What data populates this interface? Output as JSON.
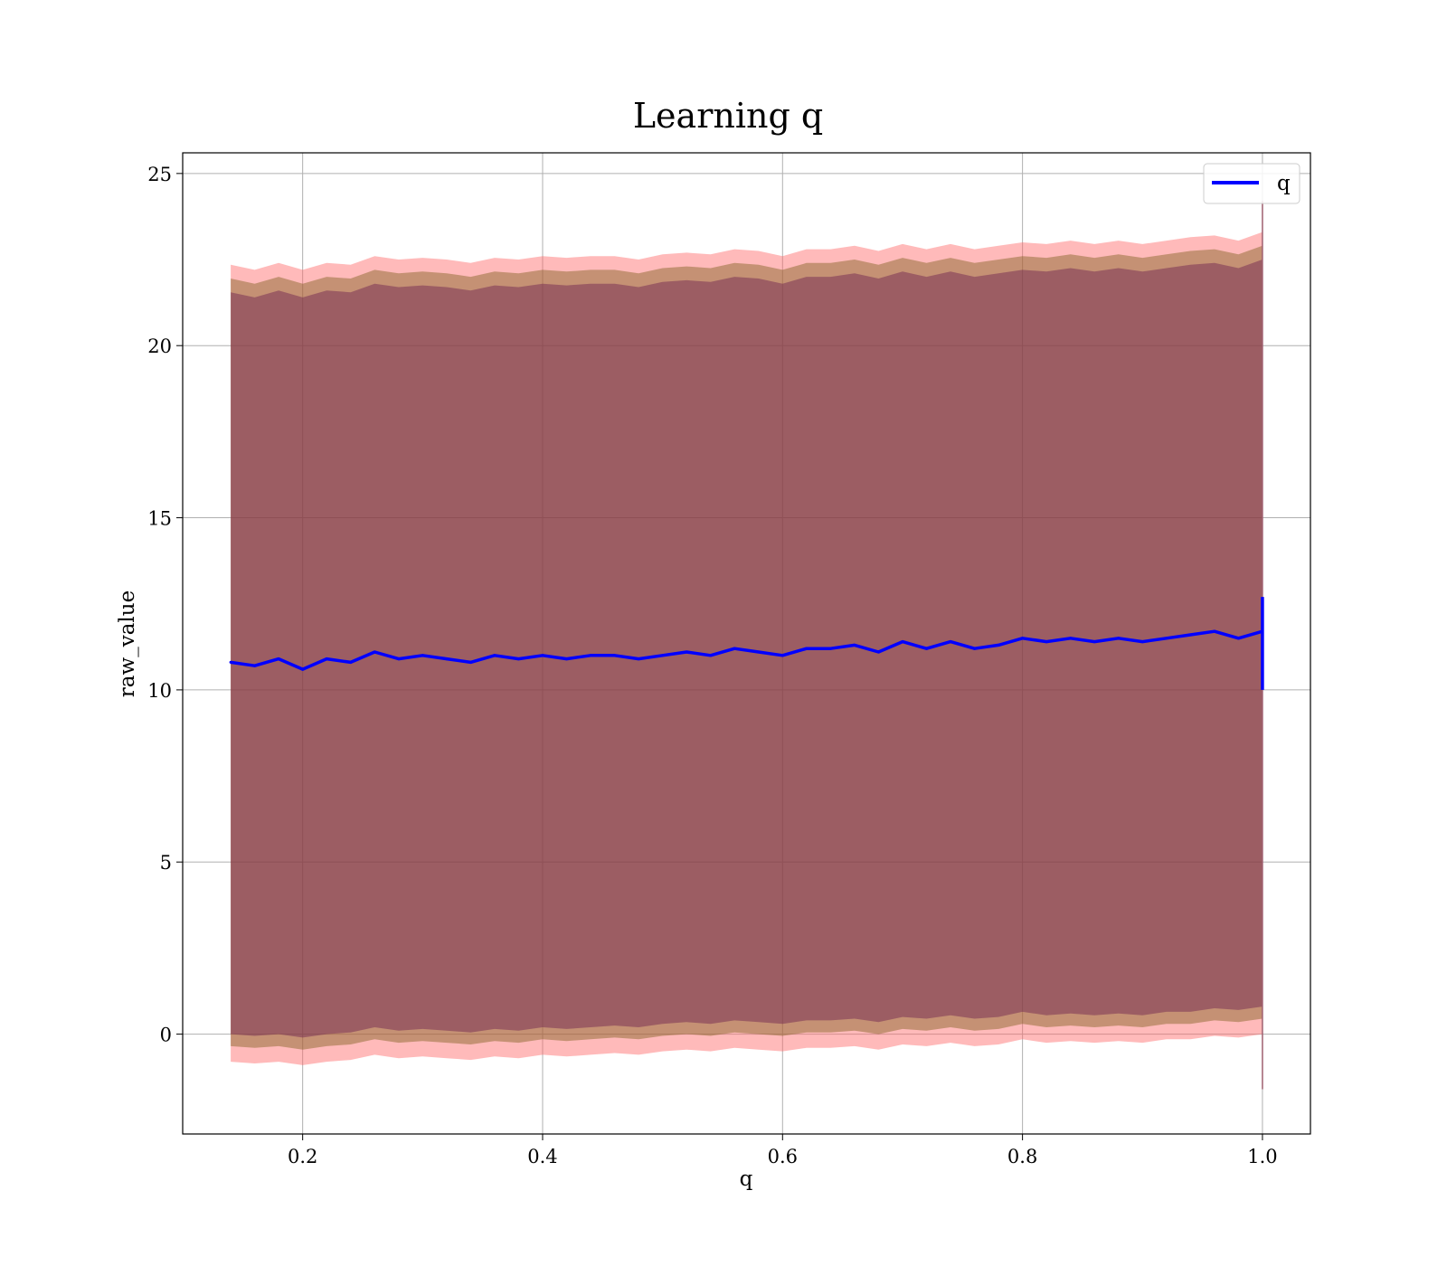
{
  "chart_data": {
    "type": "line",
    "title": "Learning q",
    "xlabel": "q",
    "ylabel": "raw_value",
    "xlim": [
      0.1,
      1.04
    ],
    "ylim": [
      -2.9,
      25.6
    ],
    "xticks": [
      0.2,
      0.4,
      0.6,
      0.8,
      1.0
    ],
    "xtick_labels": [
      "0.2",
      "0.4",
      "0.6",
      "0.8",
      "1.0"
    ],
    "yticks": [
      0,
      5,
      10,
      15,
      20,
      25
    ],
    "ytick_labels": [
      "0",
      "5",
      "10",
      "15",
      "20",
      "25"
    ],
    "grid": true,
    "legend": {
      "location": "upper-right",
      "entries": [
        "q"
      ]
    },
    "series": [
      {
        "name": "q",
        "color": "#0000ff",
        "x": [
          0.14,
          0.16,
          0.18,
          0.2,
          0.22,
          0.24,
          0.26,
          0.28,
          0.3,
          0.32,
          0.34,
          0.36,
          0.38,
          0.4,
          0.42,
          0.44,
          0.46,
          0.48,
          0.5,
          0.52,
          0.54,
          0.56,
          0.58,
          0.6,
          0.62,
          0.64,
          0.66,
          0.68,
          0.7,
          0.72,
          0.74,
          0.76,
          0.78,
          0.8,
          0.82,
          0.84,
          0.86,
          0.88,
          0.9,
          0.92,
          0.94,
          0.96,
          0.98,
          1.0
        ],
        "y": [
          10.8,
          10.7,
          10.9,
          10.6,
          10.9,
          10.8,
          11.1,
          10.9,
          11.0,
          10.9,
          10.8,
          11.0,
          10.9,
          11.0,
          10.9,
          11.0,
          11.0,
          10.9,
          11.0,
          11.1,
          11.0,
          11.2,
          11.1,
          11.0,
          11.2,
          11.2,
          11.3,
          11.1,
          11.4,
          11.2,
          11.4,
          11.2,
          11.3,
          11.5,
          11.4,
          11.5,
          11.4,
          11.5,
          11.4,
          11.5,
          11.6,
          11.7,
          11.5,
          11.7
        ]
      }
    ],
    "bands": [
      {
        "color": "#ff6666",
        "lower": [
          -0.8,
          -0.85,
          -0.8,
          -0.9,
          -0.8,
          -0.75,
          -0.6,
          -0.7,
          -0.65,
          -0.7,
          -0.75,
          -0.65,
          -0.7,
          -0.6,
          -0.65,
          -0.6,
          -0.55,
          -0.6,
          -0.5,
          -0.45,
          -0.5,
          -0.4,
          -0.45,
          -0.5,
          -0.4,
          -0.4,
          -0.35,
          -0.45,
          -0.3,
          -0.35,
          -0.25,
          -0.35,
          -0.3,
          -0.15,
          -0.25,
          -0.2,
          -0.25,
          -0.2,
          -0.25,
          -0.15,
          -0.15,
          -0.05,
          -0.1,
          0.0
        ],
        "upper": [
          22.35,
          22.2,
          22.4,
          22.2,
          22.4,
          22.35,
          22.6,
          22.5,
          22.55,
          22.5,
          22.4,
          22.55,
          22.5,
          22.6,
          22.55,
          22.6,
          22.6,
          22.5,
          22.65,
          22.7,
          22.65,
          22.8,
          22.75,
          22.6,
          22.8,
          22.8,
          22.9,
          22.75,
          22.95,
          22.8,
          22.95,
          22.8,
          22.9,
          23.0,
          22.95,
          23.05,
          22.95,
          23.05,
          22.95,
          23.05,
          23.15,
          23.2,
          23.05,
          23.3
        ]
      },
      {
        "color": "#7f5f1f",
        "lower": [
          -0.35,
          -0.4,
          -0.35,
          -0.45,
          -0.35,
          -0.3,
          -0.15,
          -0.25,
          -0.2,
          -0.25,
          -0.3,
          -0.2,
          -0.25,
          -0.15,
          -0.2,
          -0.15,
          -0.1,
          -0.15,
          -0.05,
          0.0,
          -0.05,
          0.05,
          0.0,
          -0.05,
          0.05,
          0.05,
          0.1,
          0.0,
          0.15,
          0.1,
          0.2,
          0.1,
          0.15,
          0.3,
          0.2,
          0.25,
          0.2,
          0.25,
          0.2,
          0.3,
          0.3,
          0.4,
          0.35,
          0.45
        ],
        "upper": [
          21.95,
          21.8,
          22.0,
          21.8,
          22.0,
          21.95,
          22.2,
          22.1,
          22.15,
          22.1,
          22.0,
          22.15,
          22.1,
          22.2,
          22.15,
          22.2,
          22.2,
          22.1,
          22.25,
          22.3,
          22.25,
          22.4,
          22.35,
          22.2,
          22.4,
          22.4,
          22.5,
          22.35,
          22.55,
          22.4,
          22.55,
          22.4,
          22.5,
          22.6,
          22.55,
          22.65,
          22.55,
          22.65,
          22.55,
          22.65,
          22.75,
          22.8,
          22.65,
          22.9
        ]
      },
      {
        "color": "#6a1f4f",
        "lower": [
          0.0,
          -0.05,
          0.0,
          -0.1,
          0.0,
          0.05,
          0.2,
          0.1,
          0.15,
          0.1,
          0.05,
          0.15,
          0.1,
          0.2,
          0.15,
          0.2,
          0.25,
          0.2,
          0.3,
          0.35,
          0.3,
          0.4,
          0.35,
          0.3,
          0.4,
          0.4,
          0.45,
          0.35,
          0.5,
          0.45,
          0.55,
          0.45,
          0.5,
          0.65,
          0.55,
          0.6,
          0.55,
          0.6,
          0.55,
          0.65,
          0.65,
          0.75,
          0.7,
          0.8
        ],
        "upper": [
          21.55,
          21.4,
          21.6,
          21.4,
          21.6,
          21.55,
          21.8,
          21.7,
          21.75,
          21.7,
          21.6,
          21.75,
          21.7,
          21.8,
          21.75,
          21.8,
          21.8,
          21.7,
          21.85,
          21.9,
          21.85,
          22.0,
          21.95,
          21.8,
          22.0,
          22.0,
          22.1,
          21.95,
          22.15,
          22.0,
          22.15,
          22.0,
          22.1,
          22.2,
          22.15,
          22.25,
          22.15,
          22.25,
          22.15,
          22.25,
          22.35,
          22.4,
          22.25,
          22.5
        ]
      }
    ],
    "end_spike": {
      "x": 1.0,
      "line_range": [
        10.0,
        12.7
      ],
      "band_range": [
        -1.6,
        24.2
      ]
    }
  }
}
